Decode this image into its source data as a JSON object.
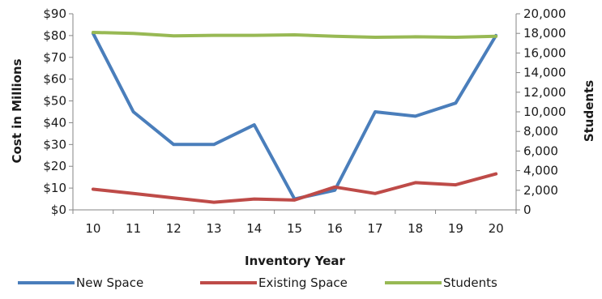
{
  "chart_data": {
    "type": "line",
    "x": [
      "10",
      "11",
      "12",
      "13",
      "14",
      "15",
      "16",
      "17",
      "18",
      "19",
      "20"
    ],
    "xlabel": "Inventory Year",
    "ylabel": "Cost in Millions",
    "y2label": "Students",
    "ylim": [
      0,
      90
    ],
    "y2lim": [
      0,
      20000
    ],
    "yticks": [
      "$0",
      "$10",
      "$20",
      "$30",
      "$40",
      "$50",
      "$60",
      "$70",
      "$80",
      "$90"
    ],
    "y2ticks": [
      "0",
      "2,000",
      "4,000",
      "6,000",
      "8,000",
      "10,000",
      "12,000",
      "14,000",
      "16,000",
      "18,000",
      "20,000"
    ],
    "grid": false,
    "legend": "bottom",
    "series": [
      {
        "name": "New Space",
        "axis": "left",
        "color": "#4a7ebb",
        "values": [
          81,
          45,
          30,
          30,
          39,
          5,
          9,
          45,
          43,
          49,
          80
        ]
      },
      {
        "name": "Existing Space",
        "axis": "left",
        "color": "#be4b48",
        "values": [
          9.5,
          7.5,
          5.5,
          3.5,
          5,
          4.5,
          10.5,
          7.5,
          12.5,
          11.5,
          16.5
        ]
      },
      {
        "name": "Students",
        "axis": "right",
        "color": "#98b954",
        "values": [
          18100,
          18000,
          17750,
          17800,
          17800,
          17850,
          17700,
          17600,
          17650,
          17600,
          17700
        ]
      }
    ]
  }
}
